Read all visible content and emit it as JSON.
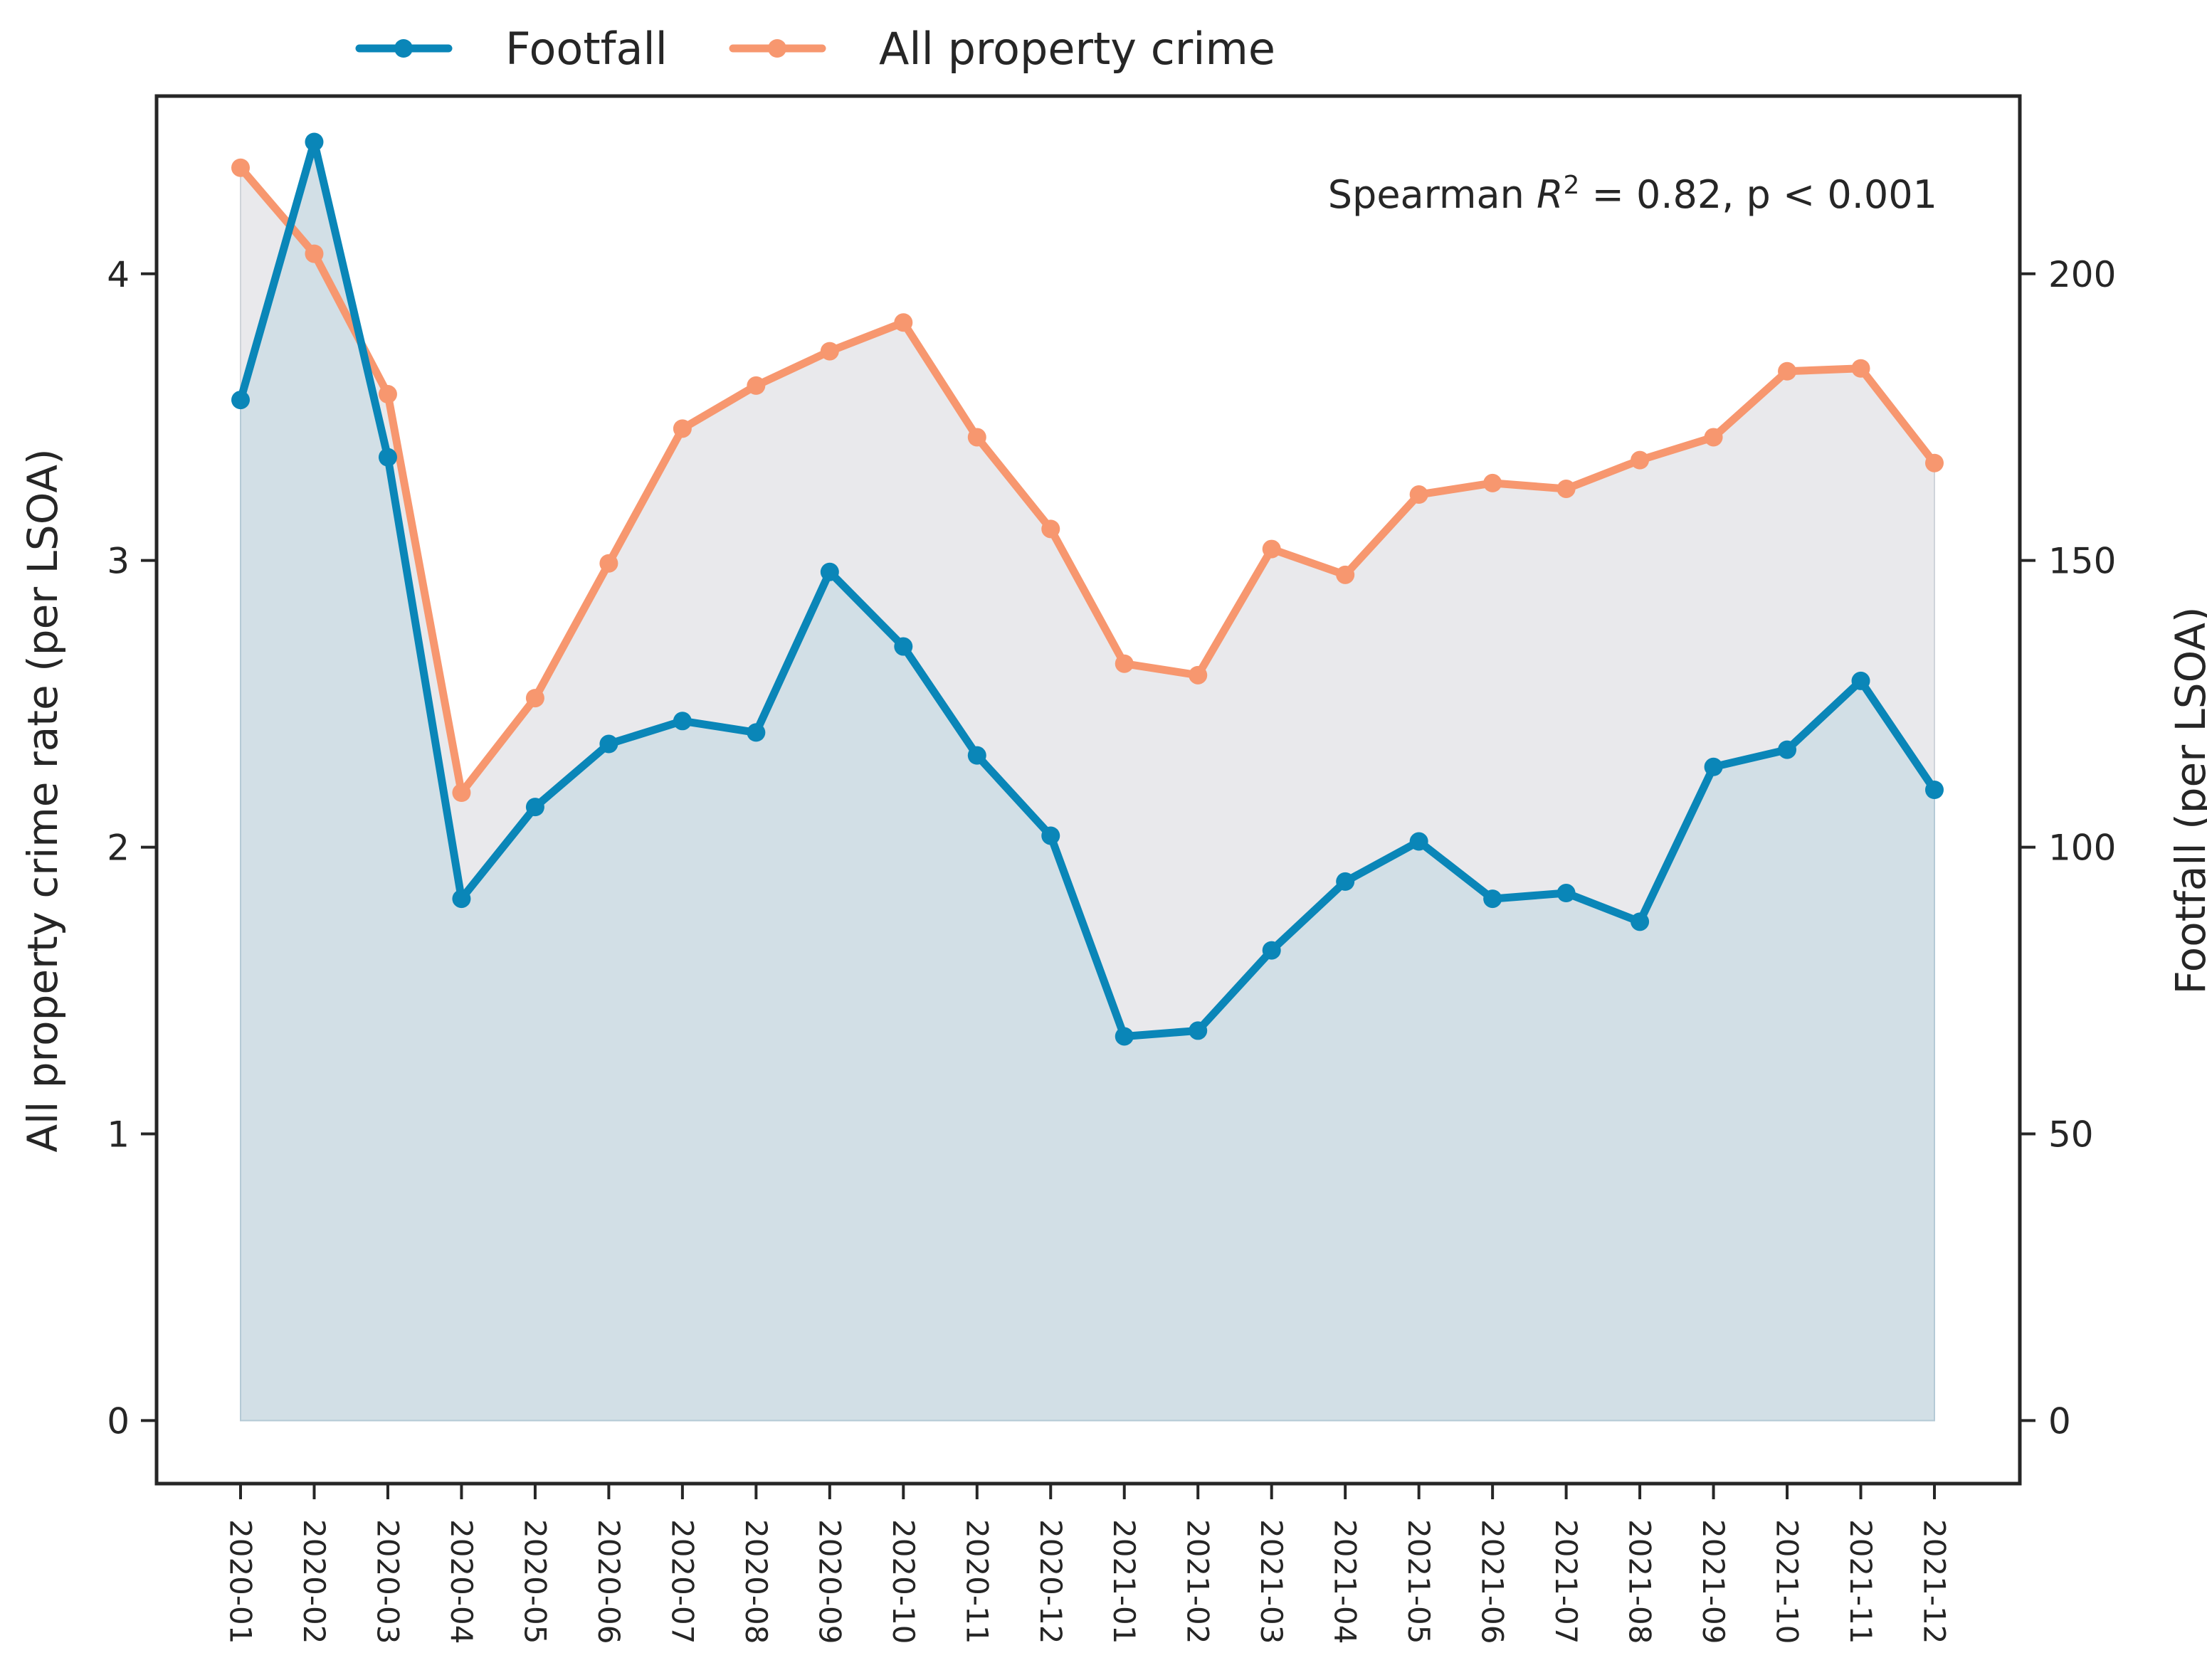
{
  "chart_data": {
    "type": "line",
    "categories": [
      "2020-01",
      "2020-02",
      "2020-03",
      "2020-04",
      "2020-05",
      "2020-06",
      "2020-07",
      "2020-08",
      "2020-09",
      "2020-10",
      "2020-11",
      "2020-12",
      "2021-01",
      "2021-02",
      "2021-03",
      "2021-04",
      "2021-05",
      "2021-06",
      "2021-07",
      "2021-08",
      "2021-09",
      "2021-10",
      "2021-11",
      "2021-12"
    ],
    "series": [
      {
        "name": "Footfall",
        "axis": "right",
        "color": "#0a86b8",
        "values": [
          178,
          223,
          168,
          91,
          107,
          118,
          122,
          120,
          148,
          135,
          116,
          102,
          67,
          68,
          82,
          94,
          101,
          91,
          92,
          87,
          114,
          117,
          129,
          110
        ]
      },
      {
        "name": "All property crime",
        "axis": "left",
        "color": "#f7976f",
        "values": [
          4.37,
          4.07,
          3.58,
          2.19,
          2.52,
          2.99,
          3.46,
          3.61,
          3.73,
          3.83,
          3.43,
          3.11,
          2.64,
          2.6,
          3.04,
          2.95,
          3.23,
          3.27,
          3.25,
          3.35,
          3.43,
          3.66,
          3.67,
          3.34
        ]
      }
    ],
    "left_axis": {
      "label": "All property crime rate (per LSOA)",
      "ylim": [
        -0.22,
        4.62
      ],
      "ticks": [
        0,
        1,
        2,
        3,
        4
      ]
    },
    "right_axis": {
      "label": "Footfall (per LSOA)",
      "ylim": [
        -11,
        231
      ],
      "ticks": [
        0,
        50,
        100,
        150,
        200
      ]
    },
    "annotation_pre": "Spearman ",
    "annotation_var": "R",
    "annotation_exp": "2",
    "annotation_post": " = 0.82, p < 0.001",
    "legend_position": "top-center, outside"
  }
}
